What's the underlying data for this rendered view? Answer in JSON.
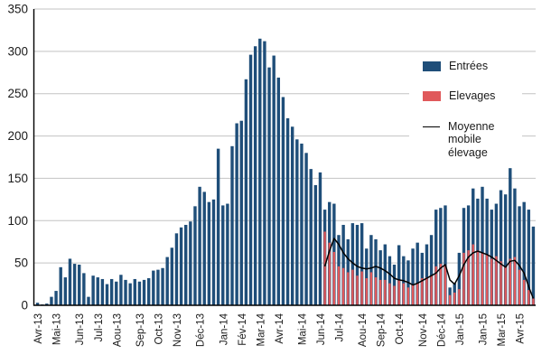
{
  "chart_data": {
    "type": "bar",
    "title": "",
    "grid": true,
    "background": "#ffffff",
    "gridline_color": "#c3c3c3",
    "axis_color": "#000000",
    "legend_position": "inside-top-right",
    "y_axis": {
      "min": 0,
      "max": 350,
      "step": 50,
      "ticks": [
        0,
        50,
        100,
        150,
        200,
        250,
        300,
        350
      ]
    },
    "x_axis_note": "weekly bars, month tick labels (duplicate Jan-15 label appears in source)",
    "months": [
      {
        "label": "Avr-13",
        "weeks": 4
      },
      {
        "label": "Mai-13",
        "weeks": 5
      },
      {
        "label": "Jun-13",
        "weeks": 4
      },
      {
        "label": "Jul-13",
        "weeks": 4
      },
      {
        "label": "Aou-13",
        "weeks": 5
      },
      {
        "label": "Sep-13",
        "weeks": 4
      },
      {
        "label": "Oct-13",
        "weeks": 4
      },
      {
        "label": "Nov-13",
        "weeks": 5
      },
      {
        "label": "Déc-13",
        "weeks": 5
      },
      {
        "label": "Jan-14",
        "weeks": 4
      },
      {
        "label": "Fév-14",
        "weeks": 4
      },
      {
        "label": "Mar-14",
        "weeks": 4
      },
      {
        "label": "Avr-14",
        "weeks": 5
      },
      {
        "label": "Mai-14",
        "weeks": 4
      },
      {
        "label": "Jun-14",
        "weeks": 4
      },
      {
        "label": "Jul-14",
        "weeks": 5
      },
      {
        "label": "Aou-14",
        "weeks": 4
      },
      {
        "label": "Sep-14",
        "weeks": 4
      },
      {
        "label": "Oct-14",
        "weeks": 5
      },
      {
        "label": "Nov-14",
        "weeks": 4
      },
      {
        "label": "Déc-14",
        "weeks": 4
      },
      {
        "label": "Jan-15",
        "weeks": 5
      },
      {
        "label": "Jan-15",
        "weeks": 4
      },
      {
        "label": "Mar-15",
        "weeks": 4
      },
      {
        "label": "Avr-15",
        "weeks": 4
      }
    ],
    "series": [
      {
        "name": "Entrées",
        "type": "bar",
        "color": "#1f4e79",
        "start_index": 0,
        "values": [
          3,
          1,
          2,
          10,
          17,
          45,
          33,
          55,
          49,
          48,
          38,
          10,
          35,
          33,
          31,
          25,
          31,
          28,
          36,
          30,
          26,
          31,
          28,
          30,
          32,
          41,
          42,
          44,
          57,
          68,
          85,
          92,
          95,
          99,
          117,
          140,
          134,
          122,
          125,
          185,
          118,
          120,
          188,
          215,
          218,
          267,
          296,
          306,
          315,
          312,
          281,
          295,
          269,
          246,
          221,
          211,
          196,
          191,
          180,
          161,
          142,
          157,
          113,
          122,
          120,
          83,
          95,
          78,
          97,
          95,
          97,
          67,
          83,
          78,
          65,
          72,
          58,
          48,
          71,
          58,
          53,
          67,
          74,
          62,
          72,
          83,
          113,
          115,
          118,
          21,
          26,
          62,
          115,
          118,
          138,
          126,
          140,
          126,
          113,
          120,
          136,
          131,
          162,
          138,
          117,
          122,
          113,
          93
        ]
      },
      {
        "name": "Elevages",
        "type": "bar",
        "color": "#e0595b",
        "start_index": 62,
        "values": [
          87,
          74,
          63,
          46,
          44,
          39,
          42,
          35,
          40,
          32,
          39,
          33,
          30,
          30,
          26,
          23,
          30,
          26,
          21,
          25,
          26,
          32,
          33,
          35,
          46,
          49,
          48,
          12,
          15,
          19,
          62,
          65,
          72,
          65,
          62,
          60,
          55,
          58,
          52,
          45,
          55,
          57,
          42,
          30,
          18,
          8
        ]
      },
      {
        "name": "Moyenne mobile élevage",
        "type": "line",
        "color": "#000000",
        "start_index": 62,
        "values": [
          46,
          64,
          79,
          72,
          62,
          55,
          50,
          46,
          44,
          43,
          44,
          46,
          44,
          41,
          37,
          32,
          30,
          29,
          27,
          24,
          26,
          29,
          32,
          35,
          38,
          44,
          48,
          30,
          25,
          35,
          48,
          57,
          62,
          64,
          62,
          60,
          57,
          53,
          49,
          45,
          52,
          53,
          47,
          38,
          22,
          8
        ]
      }
    ]
  }
}
